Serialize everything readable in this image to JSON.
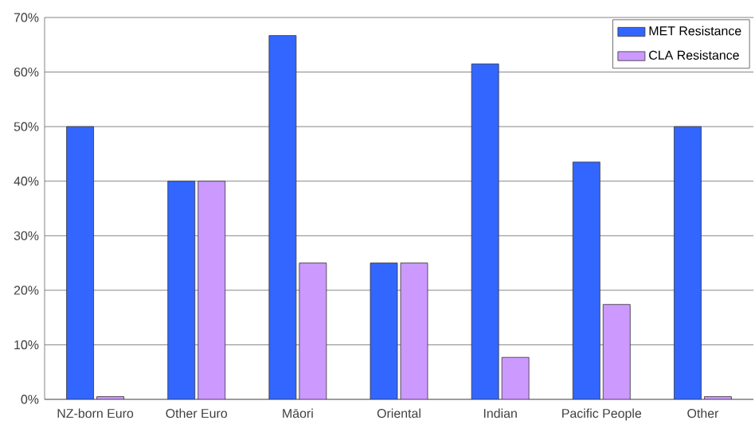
{
  "chart_data": {
    "type": "bar",
    "categories": [
      "NZ-born Euro",
      "Other Euro",
      "Māori",
      "Oriental",
      "Indian",
      "Pacific People",
      "Other"
    ],
    "series": [
      {
        "name": "MET Resistance",
        "color": "#3366ff",
        "values": [
          50,
          40,
          66.7,
          25,
          61.5,
          43.5,
          50
        ]
      },
      {
        "name": "CLA Resistance",
        "color": "#cc99ff",
        "values": [
          0.5,
          40,
          25,
          25,
          7.7,
          17.4,
          0.5
        ]
      }
    ],
    "ylim": [
      0,
      70
    ],
    "yticks": [
      {
        "value": 0,
        "label": "0%"
      },
      {
        "value": 10,
        "label": "10%"
      },
      {
        "value": 20,
        "label": "20%"
      },
      {
        "value": 30,
        "label": "30%"
      },
      {
        "value": 40,
        "label": "40%"
      },
      {
        "value": 50,
        "label": "50%"
      },
      {
        "value": 60,
        "label": "60%"
      },
      {
        "value": 70,
        "label": "70%"
      }
    ],
    "grid": "y",
    "legend": "top right"
  }
}
